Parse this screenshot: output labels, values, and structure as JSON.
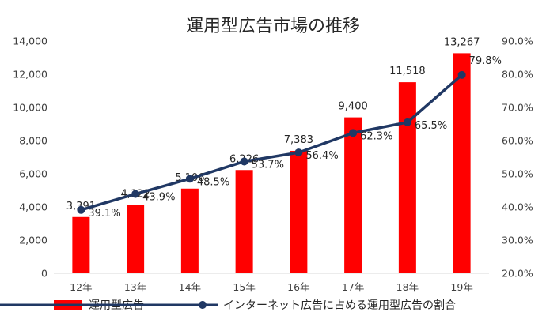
{
  "chart_data": {
    "type": "bar+line",
    "title": "運用型広告市場の推移",
    "categories": [
      "12年",
      "13年",
      "14年",
      "15年",
      "16年",
      "17年",
      "18年",
      "19年"
    ],
    "series": [
      {
        "name": "運用型広告",
        "type": "bar",
        "axis": "left",
        "color": "#ff0000",
        "values": [
          3391,
          4122,
          5106,
          6226,
          7383,
          9400,
          11518,
          13267
        ],
        "labels": [
          "3,391",
          "4,122",
          "5,106",
          "6,226",
          "7,383",
          "9,400",
          "11,518",
          "13,267"
        ]
      },
      {
        "name": "インターネット広告に占める運用型広告の割合",
        "type": "line",
        "axis": "right",
        "color": "#203864",
        "values": [
          39.1,
          43.9,
          48.5,
          53.7,
          56.4,
          62.3,
          65.5,
          79.8
        ],
        "labels": [
          "39.1%",
          "43.9%",
          "48.5%",
          "53.7%",
          "56.4%",
          "62.3%",
          "65.5%",
          "79.8%"
        ]
      }
    ],
    "left_axis": {
      "ylim": [
        0,
        14000
      ],
      "ticks": [
        0,
        2000,
        4000,
        6000,
        8000,
        10000,
        12000,
        14000
      ],
      "tick_labels": [
        "0",
        "2,000",
        "4,000",
        "6,000",
        "8,000",
        "10,000",
        "12,000",
        "14,000"
      ]
    },
    "right_axis": {
      "ylim": [
        20,
        90
      ],
      "ticks": [
        20,
        30,
        40,
        50,
        60,
        70,
        80,
        90
      ],
      "tick_labels": [
        "20.0%",
        "30.0%",
        "40.0%",
        "50.0%",
        "60.0%",
        "70.0%",
        "80.0%",
        "90.0%"
      ]
    },
    "grid": false,
    "legend": "bottom"
  }
}
